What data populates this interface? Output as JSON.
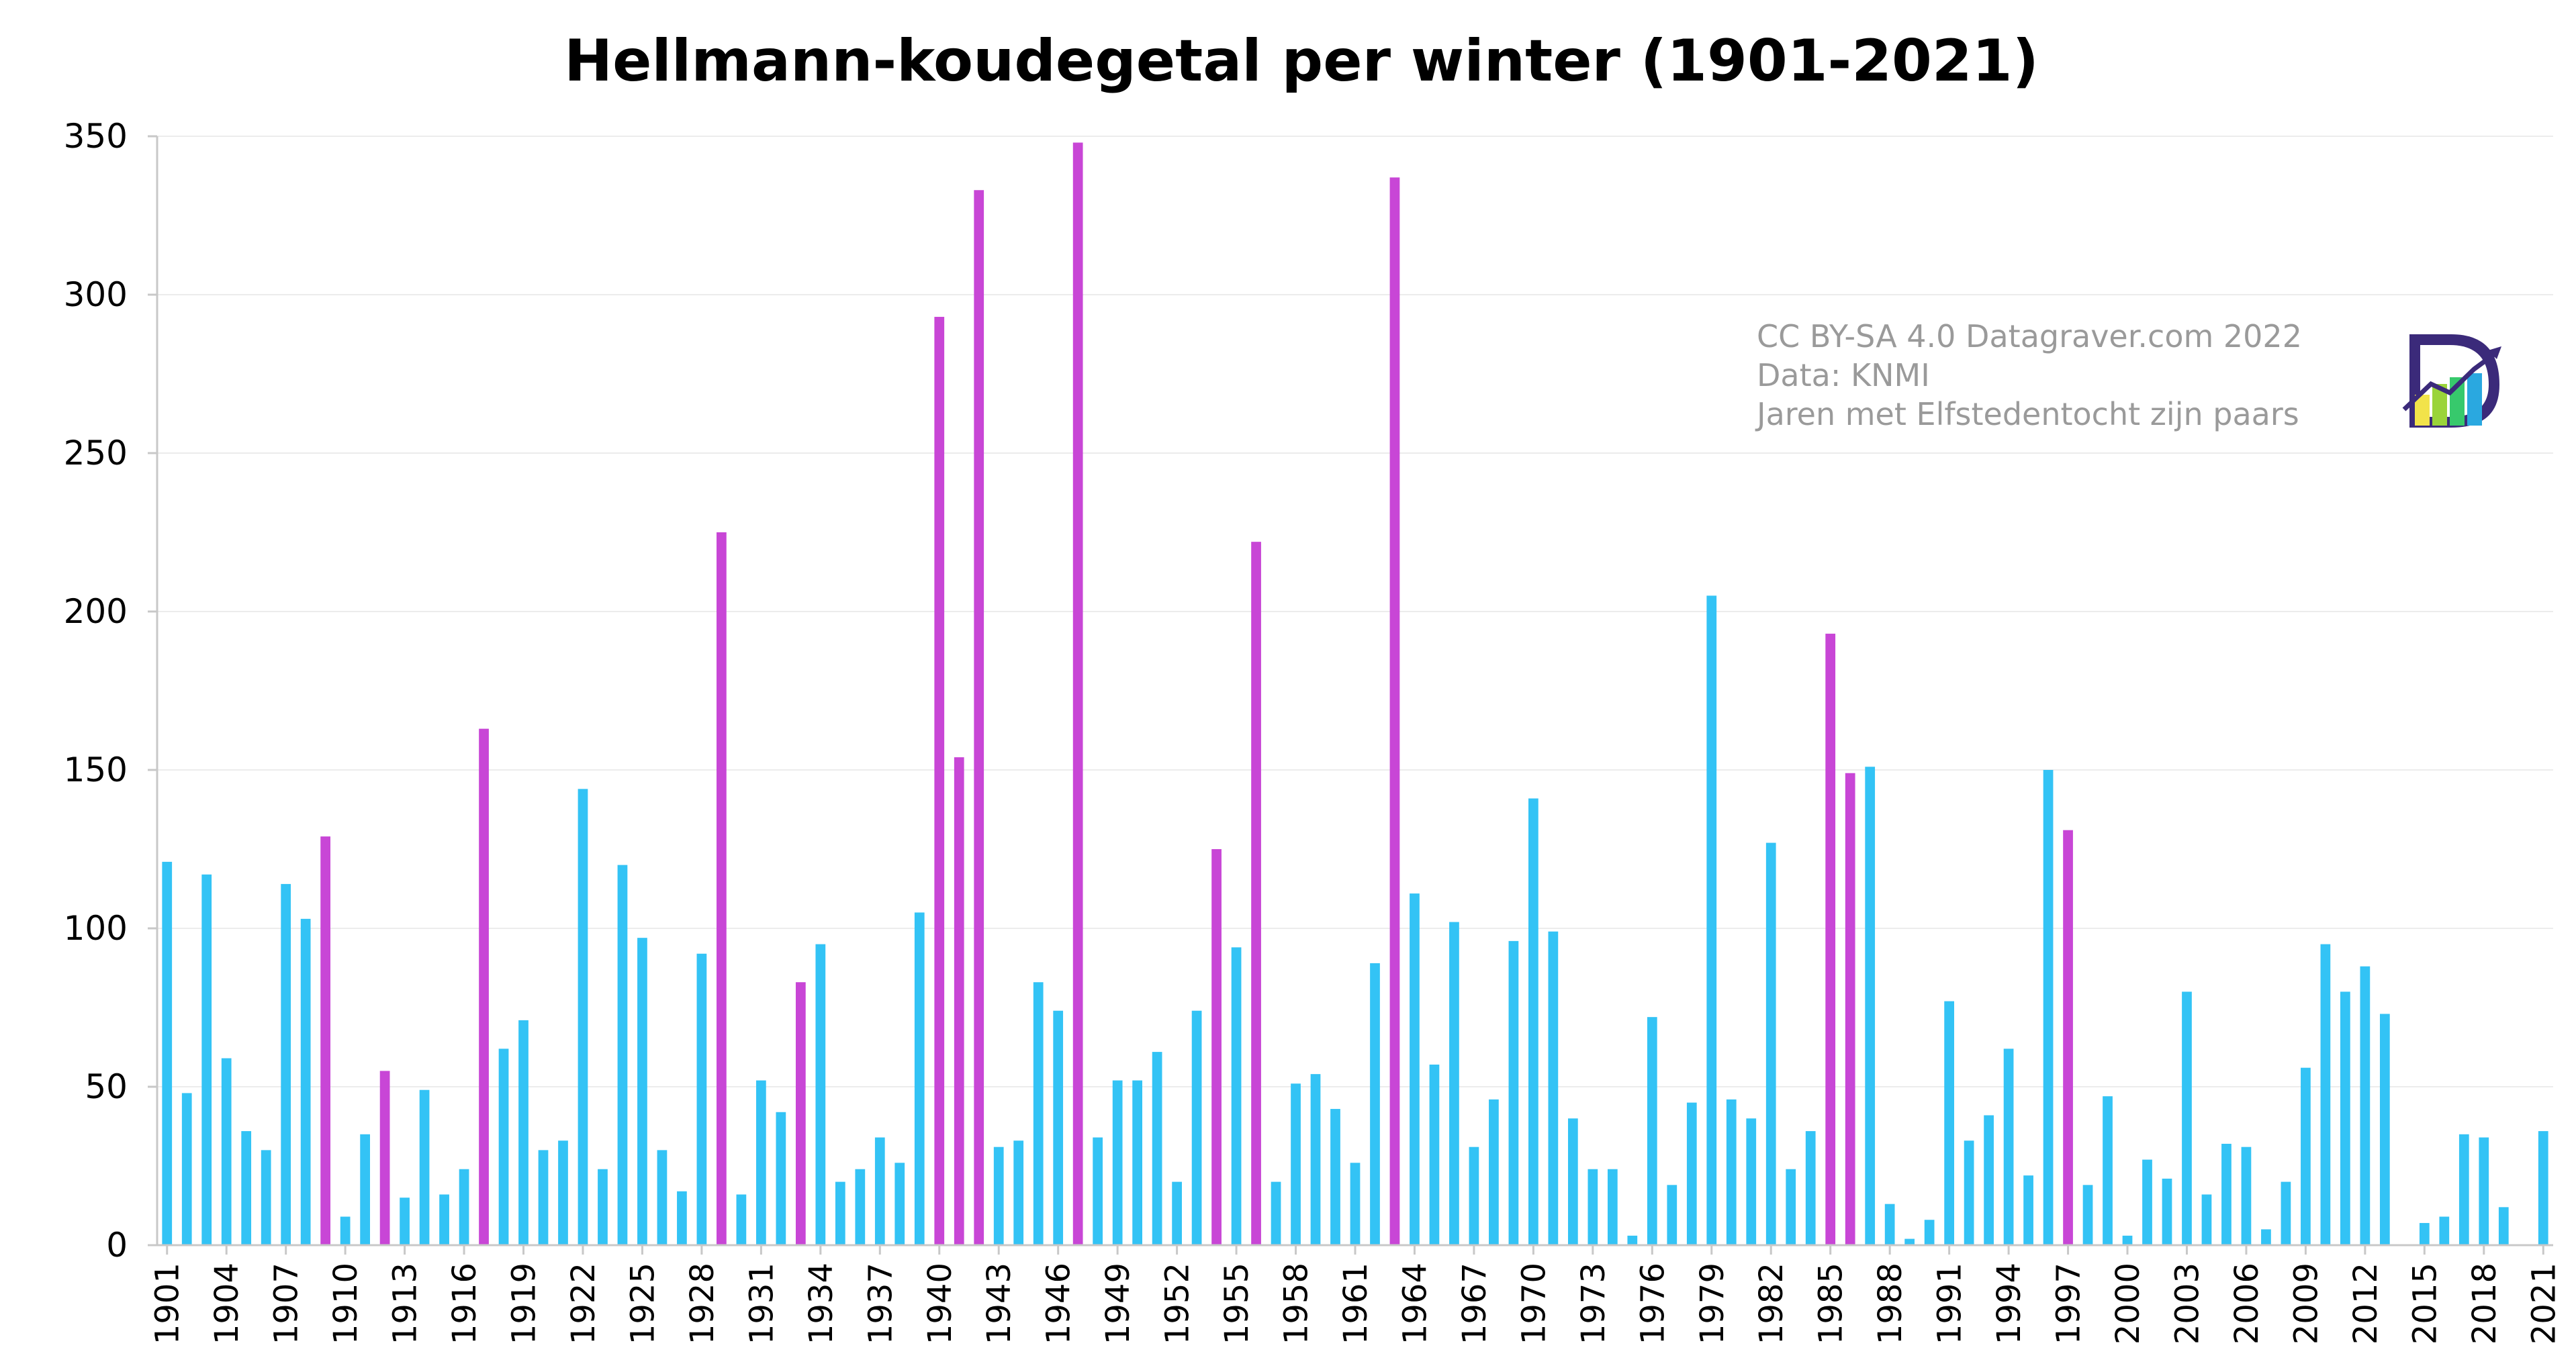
{
  "chart_data": {
    "type": "bar",
    "title": "Hellmann-koudegetal per winter (1901-2021)",
    "xlabel": "",
    "ylabel": "",
    "ylim": [
      0,
      350
    ],
    "yticks": [
      0,
      50,
      100,
      150,
      200,
      250,
      300,
      350
    ],
    "grid": true,
    "legend": "none",
    "colors": {
      "default": "#33c3f5",
      "highlight": "#c846d6"
    },
    "highlight_meaning": "Jaren met Elfstedentocht zijn paars",
    "tick_labels": [
      "1901",
      "1904",
      "1907",
      "1910",
      "1913",
      "1916",
      "1919",
      "1922",
      "1925",
      "1928",
      "1931",
      "1934",
      "1937",
      "1940",
      "1943",
      "1946",
      "1949",
      "1952",
      "1955",
      "1958",
      "1961",
      "1964",
      "1967",
      "1970",
      "1973",
      "1976",
      "1979",
      "1982",
      "1985",
      "1988",
      "1991",
      "1994",
      "1997",
      "2000",
      "2003",
      "2006",
      "2009",
      "2012",
      "2015",
      "2018",
      "2021"
    ],
    "categories": [
      1901,
      1902,
      1903,
      1904,
      1905,
      1906,
      1907,
      1908,
      1909,
      1910,
      1911,
      1912,
      1913,
      1914,
      1915,
      1916,
      1917,
      1918,
      1919,
      1920,
      1921,
      1922,
      1923,
      1924,
      1925,
      1926,
      1927,
      1928,
      1929,
      1930,
      1931,
      1932,
      1933,
      1934,
      1935,
      1936,
      1937,
      1938,
      1939,
      1940,
      1941,
      1942,
      1943,
      1944,
      1945,
      1946,
      1947,
      1948,
      1949,
      1950,
      1951,
      1952,
      1953,
      1954,
      1955,
      1956,
      1957,
      1958,
      1959,
      1960,
      1961,
      1962,
      1963,
      1964,
      1965,
      1966,
      1967,
      1968,
      1969,
      1970,
      1971,
      1972,
      1973,
      1974,
      1975,
      1976,
      1977,
      1978,
      1979,
      1980,
      1981,
      1982,
      1983,
      1984,
      1985,
      1986,
      1987,
      1988,
      1989,
      1990,
      1991,
      1992,
      1993,
      1994,
      1995,
      1996,
      1997,
      1998,
      1999,
      2000,
      2001,
      2002,
      2003,
      2004,
      2005,
      2006,
      2007,
      2008,
      2009,
      2010,
      2011,
      2012,
      2013,
      2014,
      2015,
      2016,
      2017,
      2018,
      2019,
      2020,
      2021
    ],
    "values": [
      121,
      48,
      117,
      59,
      36,
      30,
      114,
      103,
      129,
      9,
      35,
      55,
      15,
      49,
      16,
      24,
      163,
      62,
      71,
      30,
      33,
      144,
      24,
      120,
      97,
      30,
      17,
      92,
      225,
      16,
      52,
      42,
      83,
      95,
      20,
      24,
      34,
      26,
      105,
      293,
      154,
      333,
      31,
      33,
      83,
      74,
      348,
      34,
      52,
      52,
      61,
      20,
      74,
      125,
      94,
      222,
      20,
      51,
      54,
      43,
      26,
      89,
      337,
      111,
      57,
      102,
      31,
      46,
      96,
      141,
      99,
      40,
      24,
      24,
      3,
      72,
      19,
      45,
      205,
      46,
      40,
      127,
      24,
      36,
      193,
      149,
      151,
      13,
      2,
      8,
      77,
      33,
      41,
      62,
      22,
      150,
      131,
      19,
      47,
      3,
      27,
      21,
      80,
      16,
      32,
      31,
      5,
      20,
      56,
      95,
      80,
      88,
      73,
      0,
      7,
      9,
      35,
      34,
      12,
      0,
      36
    ],
    "elfstedentocht_years": [
      1909,
      1912,
      1917,
      1929,
      1933,
      1940,
      1941,
      1942,
      1947,
      1954,
      1956,
      1963,
      1985,
      1986,
      1997
    ]
  },
  "credits": {
    "line1": "CC BY-SA 4.0 Datagraver.com  2022",
    "line2": "Data: KNMI",
    "line3": "Jaren met Elfstedentocht zijn paars"
  },
  "logo": {
    "icon": "datagraver-logo-icon",
    "colors": [
      "#3b2a7a",
      "#f2e34a",
      "#9ad43a",
      "#37c96c",
      "#2aa8e0"
    ]
  }
}
